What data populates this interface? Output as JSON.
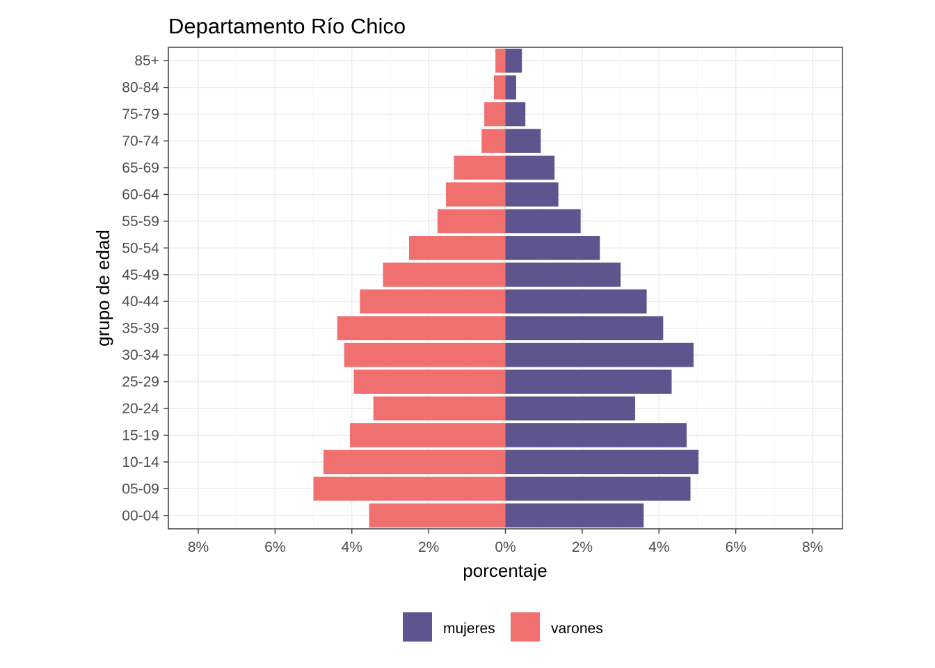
{
  "chart_data": {
    "type": "bar",
    "orientation": "horizontal",
    "layout": "population-pyramid",
    "title": "Departamento Río Chico",
    "xlabel": "porcentaje",
    "ylabel": "grupo de edad",
    "xlim": [
      -8.0,
      8.0
    ],
    "xticks": [
      -8,
      -6,
      -4,
      -2,
      0,
      2,
      4,
      6,
      8
    ],
    "xtick_labels": [
      "8%",
      "6%",
      "4%",
      "2%",
      "0%",
      "2%",
      "4%",
      "6%",
      "8%"
    ],
    "categories": [
      "00-04",
      "05-09",
      "10-14",
      "15-19",
      "20-24",
      "25-29",
      "30-34",
      "35-39",
      "40-44",
      "45-49",
      "50-54",
      "55-59",
      "60-64",
      "65-69",
      "70-74",
      "75-79",
      "80-84",
      "85+"
    ],
    "series": [
      {
        "name": "mujeres",
        "color": "#5e548e",
        "side": "right",
        "values": [
          3.6,
          4.82,
          5.03,
          4.72,
          3.38,
          4.33,
          4.9,
          4.11,
          3.68,
          3.0,
          2.46,
          1.96,
          1.38,
          1.28,
          0.92,
          0.52,
          0.28,
          0.43
        ]
      },
      {
        "name": "varones",
        "color": "#f07070",
        "side": "left",
        "values": [
          3.55,
          5.0,
          4.74,
          4.05,
          3.44,
          3.95,
          4.2,
          4.38,
          3.79,
          3.19,
          2.51,
          1.77,
          1.55,
          1.34,
          0.62,
          0.55,
          0.3,
          0.26
        ]
      }
    ],
    "grid": true,
    "legend_position": "bottom"
  }
}
